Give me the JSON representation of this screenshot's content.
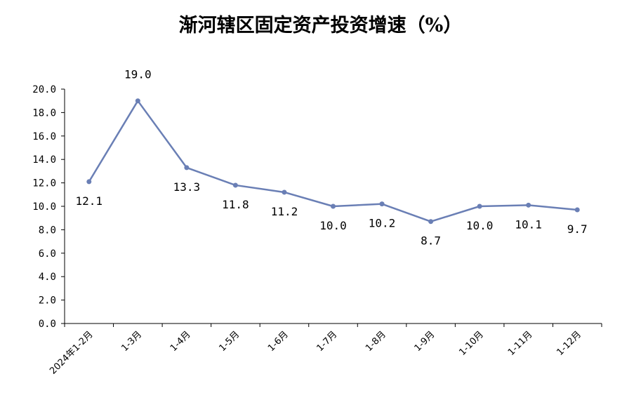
{
  "chart_data": {
    "type": "line",
    "title": "渐河辖区固定资产投资增速（%）",
    "xlabel": "",
    "ylabel": "",
    "categories": [
      "2024年1-2月",
      "1-3月",
      "1-4月",
      "1-5月",
      "1-6月",
      "1-7月",
      "1-8月",
      "1-9月",
      "1-10月",
      "1-11月",
      "1-12月"
    ],
    "series": [
      {
        "values": [
          12.1,
          19.0,
          13.3,
          11.8,
          11.2,
          10.0,
          10.2,
          8.7,
          10.0,
          10.1,
          9.7
        ],
        "data_labels": [
          "12.1",
          "19.0",
          "13.3",
          "11.8",
          "11.2",
          "10.0",
          "10.2",
          "8.7",
          "10.0",
          "10.1",
          "9.7"
        ],
        "color": "#6a7fb5"
      }
    ],
    "ylim": [
      0,
      20
    ],
    "yticks": [
      "0.0",
      "2.0",
      "4.0",
      "6.0",
      "8.0",
      "10.0",
      "12.0",
      "14.0",
      "16.0",
      "18.0",
      "20.0"
    ],
    "grid": false,
    "legend": "none"
  }
}
